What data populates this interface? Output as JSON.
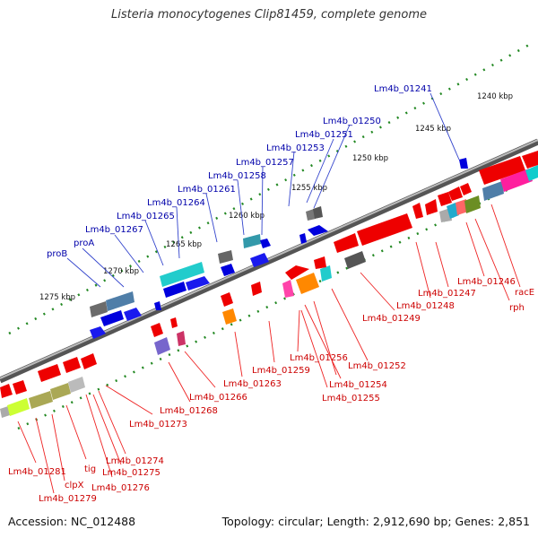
{
  "title": "Listeria monocytogenes Clip81459, complete genome",
  "footer": {
    "accession": "Accession: NC_012488",
    "summary": "Topology: circular; Length: 2,912,690 bp; Genes: 2,851"
  },
  "colors": {
    "forward_label": "#0000aa",
    "reverse_label": "#cc0000",
    "backbone": "#808080",
    "tick": "#228822"
  },
  "ticks": [
    "1240 kbp",
    "1245 kbp",
    "1250 kbp",
    "1255 kbp",
    "1260 kbp",
    "1265 kbp",
    "1270 kbp",
    "1275 kbp"
  ],
  "forward_labels": [
    "Lm4b_01241",
    "Lm4b_01250",
    "Lm4b_01251",
    "Lm4b_01253",
    "Lm4b_01257",
    "Lm4b_01258",
    "Lm4b_01261",
    "Lm4b_01264",
    "Lm4b_01265",
    "Lm4b_01267",
    "proA",
    "proB"
  ],
  "reverse_labels": [
    "racE",
    "rph",
    "Lm4b_01246",
    "Lm4b_01247",
    "Lm4b_01248",
    "Lm4b_01249",
    "Lm4b_01252",
    "Lm4b_01256",
    "Lm4b_01254",
    "Lm4b_01255",
    "Lm4b_01259",
    "Lm4b_01263",
    "Lm4b_01266",
    "Lm4b_01268",
    "Lm4b_01273",
    "Lm4b_01274",
    "Lm4b_01275",
    "Lm4b_01276",
    "tig",
    "clpX",
    "Lm4b_01279",
    "Lm4b_01281"
  ]
}
